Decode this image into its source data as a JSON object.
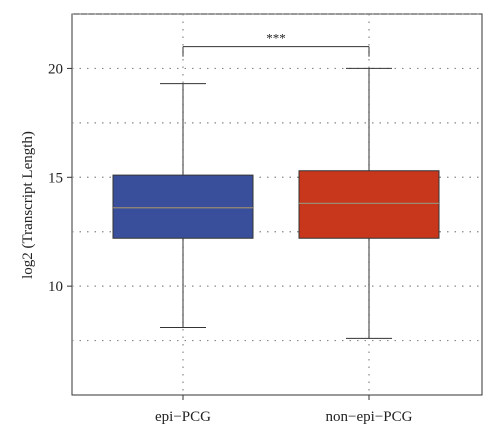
{
  "chart_data": {
    "type": "boxplot",
    "title": "",
    "xlabel": "",
    "ylabel": "log2 (Transcript Length)",
    "categories": [
      "epi−PCG",
      "non−epi−PCG"
    ],
    "ylim": [
      5.0,
      22.5
    ],
    "yticks": [
      10,
      15,
      20
    ],
    "grid": true,
    "grid_style": "dotted",
    "boxes": [
      {
        "category": "epi−PCG",
        "whisker_low": 8.1,
        "q1": 12.2,
        "median": 13.6,
        "q3": 15.1,
        "whisker_high": 19.3,
        "color": "#3a4f9b"
      },
      {
        "category": "non−epi−PCG",
        "whisker_low": 7.6,
        "q1": 12.2,
        "median": 13.8,
        "q3": 15.3,
        "whisker_high": 20.0,
        "color": "#c8361c"
      }
    ],
    "significance": {
      "label": "***",
      "between": [
        "epi−PCG",
        "non−epi−PCG"
      ],
      "y": 21.0
    }
  }
}
